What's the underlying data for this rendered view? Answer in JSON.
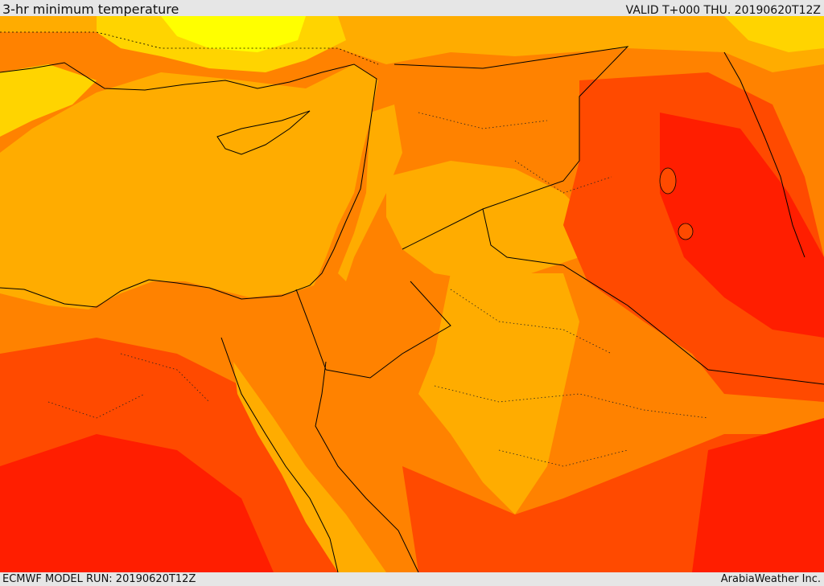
{
  "header": {
    "title": "3-hr minimum temperature",
    "valid_time": "VALID T+000 THU. 20190620T12Z"
  },
  "footer": {
    "model_run": "ECMWF MODEL RUN: 20190620T12Z",
    "credit": "ArabiaWeather Inc."
  },
  "map": {
    "field": "3-hr minimum temperature",
    "colors": {
      "hottest": "#ff1e00",
      "hot": "#ff4a00",
      "warm": "#ff8200",
      "mild": "#ffac00",
      "cool": "#ffd400",
      "coolest": "#ffff00",
      "sea": "#ffac00",
      "borders": "#000000"
    }
  }
}
